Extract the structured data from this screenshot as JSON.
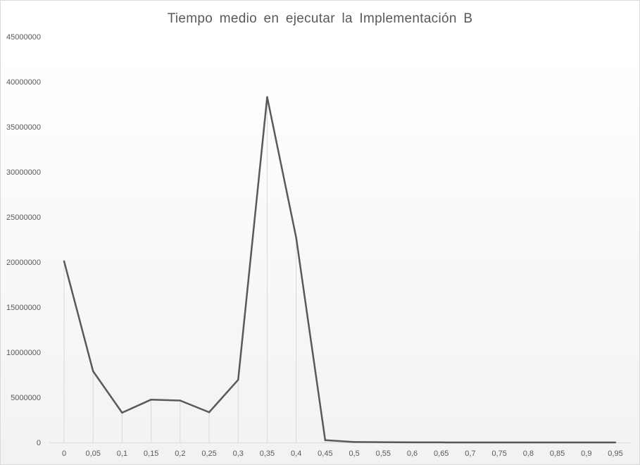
{
  "chart_data": {
    "type": "line",
    "title": "Tiempo medio en ejecutar la Implementación B",
    "xlabel": "",
    "ylabel": "",
    "categories": [
      "0",
      "0,05",
      "0,1",
      "0,15",
      "0,2",
      "0,25",
      "0,3",
      "0,35",
      "0,4",
      "0,45",
      "0,5",
      "0,55",
      "0,6",
      "0,65",
      "0,7",
      "0,75",
      "0,8",
      "0,85",
      "0,9",
      "0,95"
    ],
    "series": [
      {
        "values": [
          20100000,
          7900000,
          3300000,
          4750000,
          4650000,
          3350000,
          6950000,
          38300000,
          22700000,
          250000,
          50000,
          30000,
          10000,
          5000,
          3000,
          2000,
          1000,
          1000,
          500,
          500
        ]
      }
    ],
    "ylim": [
      0,
      45000000
    ],
    "yticks": [
      "0",
      "5000000",
      "10000000",
      "15000000",
      "20000000",
      "25000000",
      "30000000",
      "35000000",
      "40000000",
      "45000000"
    ],
    "drop_lines": true,
    "grid": false,
    "legend": "none",
    "colors": {
      "line": "#595959",
      "drop_line": "#d9d9d9",
      "axis": "#d9d9d9",
      "text": "#595959"
    }
  }
}
